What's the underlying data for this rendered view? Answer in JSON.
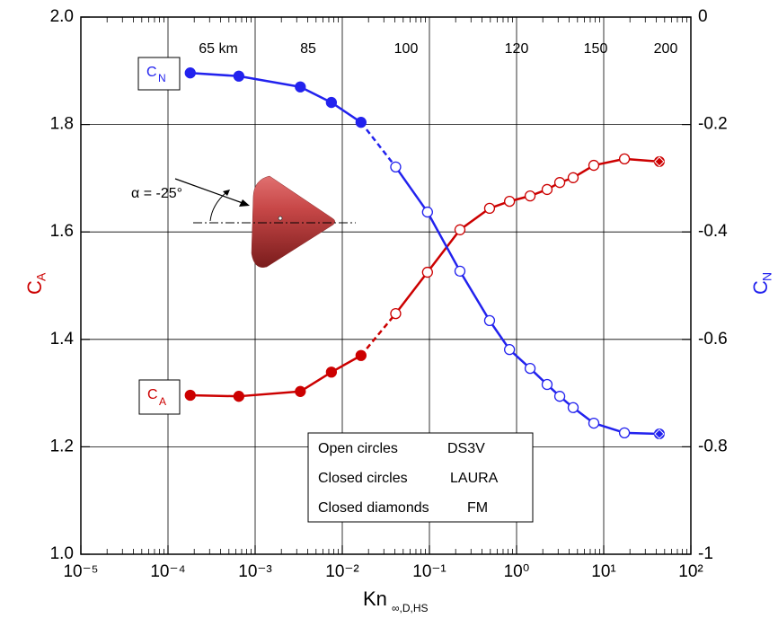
{
  "chart_data": {
    "type": "line",
    "x_label": {
      "main": "Kn",
      "sub": "∞,D,HS"
    },
    "y_label": {
      "main": "C",
      "sub": "A"
    },
    "y2_label": {
      "main": "C",
      "sub": "N"
    },
    "log_x": true,
    "grid": true,
    "x": [
      0.00018,
      0.00065,
      0.0033,
      0.0075,
      0.0164,
      0.041,
      0.095,
      0.224,
      0.49,
      0.83,
      1.43,
      2.24,
      3.13,
      4.46,
      7.7,
      17.3,
      43.5
    ],
    "marker_styles": [
      "closed",
      "closed",
      "closed",
      "closed",
      "closed",
      "open",
      "open",
      "open",
      "open",
      "open",
      "open",
      "open",
      "open",
      "open",
      "open",
      "open",
      "diamond"
    ],
    "series": [
      {
        "name": {
          "main": "C",
          "sub": "A"
        },
        "color": "#cc0000",
        "axis": "y",
        "values": [
          1.296,
          1.294,
          1.303,
          1.339,
          1.37,
          1.448,
          1.525,
          1.604,
          1.644,
          1.657,
          1.667,
          1.679,
          1.692,
          1.701,
          1.724,
          1.736,
          1.731
        ]
      },
      {
        "name": {
          "main": "C",
          "sub": "N"
        },
        "color": "#2222ee",
        "axis": "y2",
        "values": [
          -0.104,
          -0.11,
          -0.13,
          -0.159,
          -0.196,
          -0.279,
          -0.363,
          -0.473,
          -0.565,
          -0.619,
          -0.654,
          -0.684,
          -0.706,
          -0.727,
          -0.756,
          -0.774,
          -0.776
        ]
      }
    ],
    "xlim": [
      1e-05,
      100
    ],
    "xticks": [
      {
        "value": 1e-05,
        "label": "10⁻⁵"
      },
      {
        "value": 0.0001,
        "label": "10⁻⁴"
      },
      {
        "value": 0.001,
        "label": "10⁻³"
      },
      {
        "value": 0.01,
        "label": "10⁻²"
      },
      {
        "value": 0.1,
        "label": "10⁻¹"
      },
      {
        "value": 1,
        "label": "10⁰"
      },
      {
        "value": 10,
        "label": "10¹"
      },
      {
        "value": 100,
        "label": "10²"
      }
    ],
    "ylim": [
      1.0,
      2.0
    ],
    "yticks": [
      {
        "value": 1.0,
        "label": "1.0"
      },
      1.2,
      1.4,
      1.6,
      1.8,
      {
        "value": 2.0,
        "label": "2.0"
      }
    ],
    "y2lim": [
      -1,
      0
    ],
    "y2ticks": [
      -1,
      -0.8,
      -0.6,
      -0.4,
      -0.2,
      0
    ],
    "altitude_labels": [
      "65 km",
      "85",
      "100",
      "120",
      "150",
      "200"
    ],
    "angle_label": "α = -25°",
    "legend": [
      [
        "Open circles",
        "DS3V"
      ],
      [
        "Closed circles",
        "LAURA"
      ],
      [
        "Closed diamonds",
        "FM"
      ]
    ]
  }
}
